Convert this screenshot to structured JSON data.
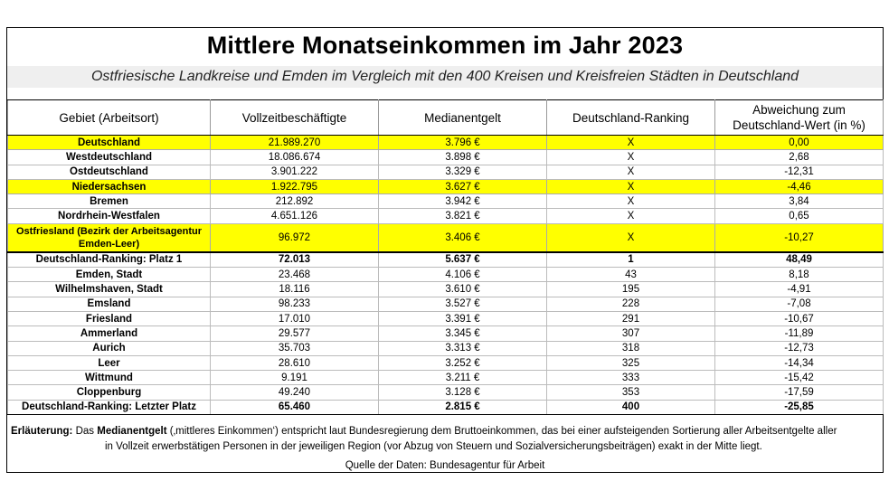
{
  "title": "Mittlere Monatseinkommen im Jahr 2023",
  "subtitle": "Ostfriesische Landkreise und Emden im Vergleich mit den 400 Kreisen und Kreisfreien Städten in Deutschland",
  "columns": {
    "region": "Gebiet (Arbeitsort)",
    "employees": "Vollzeitbeschäftigte",
    "median": "Medianentgelt",
    "ranking": "Deutschland-Ranking",
    "deviation_line1": "Abweichung zum",
    "deviation_line2": "Deutschland-Wert (in %)"
  },
  "rows": [
    {
      "region": "Deutschland",
      "employees": "21.989.270",
      "median": "3.796 €",
      "ranking": "X",
      "deviation": "0,00",
      "highlight": true
    },
    {
      "region": "Westdeutschland",
      "employees": "18.086.674",
      "median": "3.898 €",
      "ranking": "X",
      "deviation": "2,68"
    },
    {
      "region": "Ostdeutschland",
      "employees": "3.901.222",
      "median": "3.329 €",
      "ranking": "X",
      "deviation": "-12,31"
    },
    {
      "region": "Niedersachsen",
      "employees": "1.922.795",
      "median": "3.627 €",
      "ranking": "X",
      "deviation": "-4,46",
      "highlight": true
    },
    {
      "region": "Bremen",
      "employees": "212.892",
      "median": "3.942 €",
      "ranking": "X",
      "deviation": "3,84"
    },
    {
      "region": "Nordrhein-Westfalen",
      "employees": "4.651.126",
      "median": "3.821 €",
      "ranking": "X",
      "deviation": "0,65"
    },
    {
      "region": "Ostfriesland (Bezirk der Arbeitsagentur Emden-Leer)",
      "employees": "96.972",
      "median": "3.406 €",
      "ranking": "X",
      "deviation": "-10,27",
      "highlight": true,
      "tall": true
    },
    {
      "region": "Deutschland-Ranking: Platz 1",
      "employees": "72.013",
      "median": "5.637 €",
      "ranking": "1",
      "deviation": "48,49",
      "bold": true,
      "sep": true
    },
    {
      "region": "Emden, Stadt",
      "employees": "23.468",
      "median": "4.106 €",
      "ranking": "43",
      "deviation": "8,18"
    },
    {
      "region": "Wilhelmshaven, Stadt",
      "employees": "18.116",
      "median": "3.610 €",
      "ranking": "195",
      "deviation": "-4,91"
    },
    {
      "region": "Emsland",
      "employees": "98.233",
      "median": "3.527 €",
      "ranking": "228",
      "deviation": "-7,08"
    },
    {
      "region": "Friesland",
      "employees": "17.010",
      "median": "3.391 €",
      "ranking": "291",
      "deviation": "-10,67"
    },
    {
      "region": "Ammerland",
      "employees": "29.577",
      "median": "3.345 €",
      "ranking": "307",
      "deviation": "-11,89"
    },
    {
      "region": "Aurich",
      "employees": "35.703",
      "median": "3.313 €",
      "ranking": "318",
      "deviation": "-12,73"
    },
    {
      "region": "Leer",
      "employees": "28.610",
      "median": "3.252 €",
      "ranking": "325",
      "deviation": "-14,34"
    },
    {
      "region": "Wittmund",
      "employees": "9.191",
      "median": "3.211 €",
      "ranking": "333",
      "deviation": "-15,42"
    },
    {
      "region": "Cloppenburg",
      "employees": "49.240",
      "median": "3.128 €",
      "ranking": "353",
      "deviation": "-17,59"
    },
    {
      "region": "Deutschland-Ranking: Letzter Platz",
      "employees": "65.460",
      "median": "2.815 €",
      "ranking": "400",
      "deviation": "-25,85",
      "bold": true,
      "last": true
    }
  ],
  "note": {
    "label": "Erläuterung:",
    "prefix": "Das",
    "keyword": "Medianentgelt",
    "line1_rest": "(‚mittleres Einkommen‘) entspricht laut Bundesregierung dem Bruttoeinkommen, das bei einer aufsteigenden Sortierung aller Arbeitsentgelte aller",
    "line2": "in Vollzeit erwerbstätigen Personen in der jeweiligen Region (vor Abzug von Steuern und Sozialversicherungsbeiträgen) exakt in der Mitte liegt."
  },
  "source": "Quelle der Daten: Bundesagentur für Arbeit",
  "colors": {
    "highlight": "#ffff00",
    "subtitle_bg": "#efefef"
  }
}
